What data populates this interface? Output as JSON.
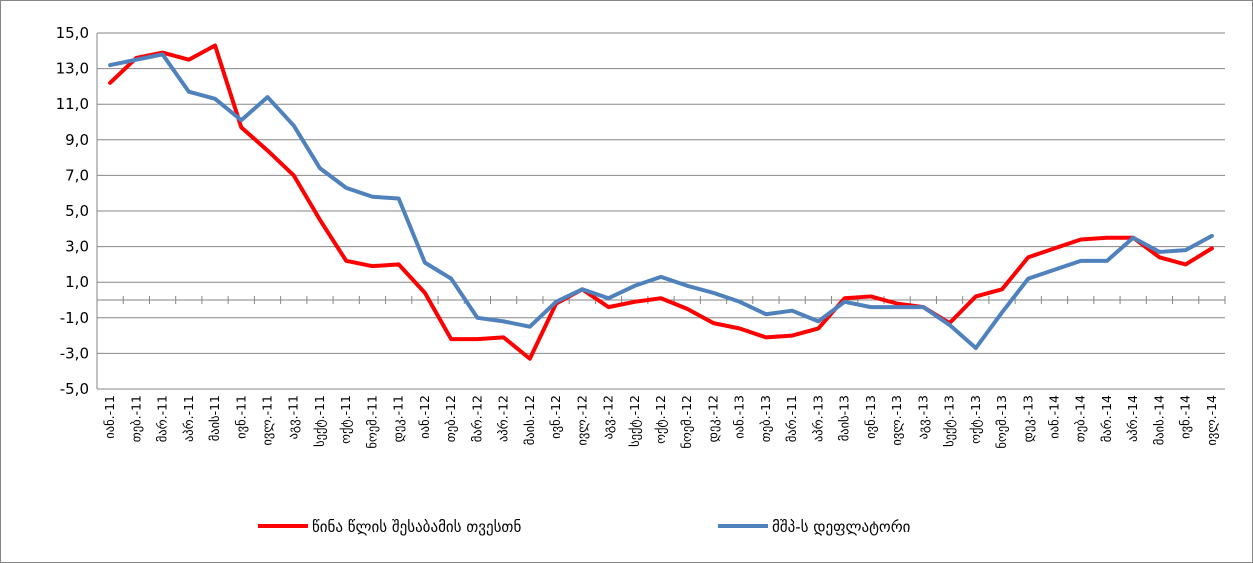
{
  "chart_data": {
    "type": "line",
    "categories": [
      "იან.-11",
      "თებ.-11",
      "მარ.-11",
      "აპრ.-11",
      "მაის-11",
      "ივნ.-11",
      "ივლ.-11",
      "აგვ.-11",
      "სექტ.-11",
      "ოქტ.-11",
      "ნოემ.-11",
      "დეკ.-11",
      "იან.-12",
      "თებ.-12",
      "მარ.-12",
      "აპრ.-12",
      "მაის.-12",
      "ივნ.-12",
      "ივლ.-12",
      "აგვ.-12",
      "სექტ.-12",
      "ოქტ.-12",
      "ნოემ.-12",
      "დეკ.-12",
      "იან.-13",
      "თებ.-13",
      "მარ.-11",
      "აპრ.-13",
      "მაის-13",
      "ივნ.-13",
      "ივლ.-13",
      "აგვ.-13",
      "სექტ.-13",
      "ოქტ.-13",
      "ნოემ.-13",
      "დეკ.-13",
      "იან.-14",
      "თებ.-14",
      "მარ.-14",
      "აპრ.-14",
      "მაის.-14",
      "ივნ.-14",
      "ივლ.-14"
    ],
    "series": [
      {
        "name": "წინა წლის შესაბამის თვესთნ",
        "color": "#ff0000",
        "values": [
          12.2,
          13.6,
          13.9,
          13.5,
          14.3,
          9.7,
          8.4,
          7.0,
          4.5,
          2.2,
          1.9,
          2.0,
          0.4,
          -2.2,
          -2.2,
          -2.1,
          -3.3,
          -0.2,
          0.6,
          -0.4,
          -0.1,
          0.1,
          -0.5,
          -1.3,
          -1.6,
          -2.1,
          -2.0,
          -1.6,
          0.1,
          0.2,
          -0.2,
          -0.4,
          -1.3,
          0.2,
          0.6,
          2.4,
          2.9,
          3.4,
          3.5,
          3.5,
          2.4,
          2.0,
          2.9
        ]
      },
      {
        "name": "მშპ-ს დეფლატორი",
        "color": "#4f81bd",
        "values": [
          13.2,
          13.5,
          13.8,
          11.7,
          11.3,
          10.1,
          11.4,
          9.8,
          7.4,
          6.3,
          5.8,
          5.7,
          2.1,
          1.2,
          -1.0,
          -1.2,
          -1.5,
          -0.1,
          0.6,
          0.1,
          0.8,
          1.3,
          0.8,
          0.4,
          -0.1,
          -0.8,
          -0.6,
          -1.2,
          -0.1,
          -0.4,
          -0.4,
          -0.4,
          -1.4,
          -2.7,
          -0.7,
          1.2,
          1.7,
          2.2,
          2.2,
          3.5,
          2.7,
          2.8,
          3.6
        ]
      }
    ],
    "ylim": [
      -5,
      15
    ],
    "yticks": [
      {
        "value": -5,
        "label": "-5,0"
      },
      {
        "value": -3,
        "label": "-3,0"
      },
      {
        "value": -1,
        "label": "-1,0"
      },
      {
        "value": 1,
        "label": "1,0"
      },
      {
        "value": 3,
        "label": "3,0"
      },
      {
        "value": 5,
        "label": "5,0"
      },
      {
        "value": 7,
        "label": "7,0"
      },
      {
        "value": 9,
        "label": "9,0"
      },
      {
        "value": 11,
        "label": "11,0"
      },
      {
        "value": 13,
        "label": "13,0"
      },
      {
        "value": 15,
        "label": "15,0"
      }
    ],
    "grid": true,
    "legend": "bottom"
  }
}
